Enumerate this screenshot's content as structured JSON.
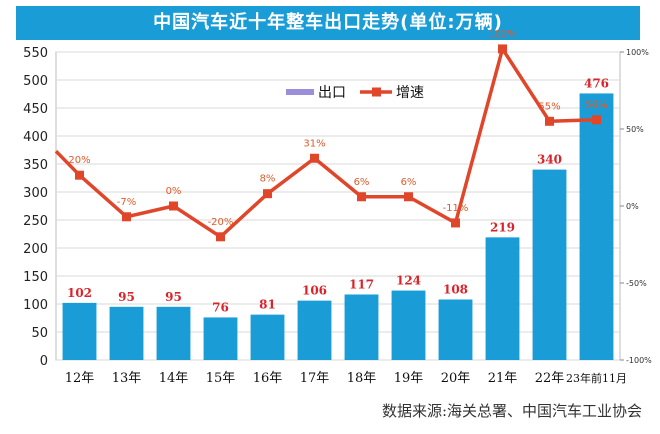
{
  "chart_data": {
    "type": "bar+line",
    "title": "中国汽车近十年整车出口走势(单位:万辆)",
    "categories": [
      "12年",
      "13年",
      "14年",
      "15年",
      "16年",
      "17年",
      "18年",
      "19年",
      "20年",
      "21年",
      "22年",
      "23年前11月"
    ],
    "series": [
      {
        "name": "出口",
        "type": "bar",
        "axis": "left",
        "values": [
          102,
          95,
          95,
          76,
          81,
          106,
          117,
          124,
          108,
          219,
          340,
          476
        ]
      },
      {
        "name": "增速",
        "type": "line",
        "axis": "right",
        "values": [
          20,
          -7,
          0,
          -20,
          8,
          31,
          6,
          6,
          -11,
          102,
          55,
          56
        ]
      }
    ],
    "bar_labels": [
      "102",
      "95",
      "95",
      "76",
      "81",
      "106",
      "117",
      "124",
      "108",
      "219",
      "340",
      "476"
    ],
    "line_labels": [
      "20%",
      "-7%",
      "0%",
      "-20%",
      "8%",
      "31%",
      "6%",
      "6%",
      "-11%",
      "102%",
      "55%",
      "56%"
    ],
    "ylim_left": [
      0,
      550
    ],
    "yticks_left": [
      "0",
      "50",
      "100",
      "150",
      "200",
      "250",
      "300",
      "350",
      "400",
      "450",
      "500",
      "550"
    ],
    "ylim_right": [
      -100,
      100
    ],
    "yticks_right": [
      "-100%",
      "-50%",
      "0%",
      "50%",
      "100%"
    ],
    "legend": {
      "bar_label": "出口",
      "line_label": "增速",
      "position": "top-center"
    },
    "source": "数据来源:海关总署、中国汽车工业协会",
    "colors": {
      "bar": "#1a9cd7",
      "line": "#e0462a",
      "bar_label": "#d8232a",
      "line_label": "#e05a2a",
      "title_bg": "#1a9cd7",
      "legend_bar": "#9a8fd8"
    }
  }
}
